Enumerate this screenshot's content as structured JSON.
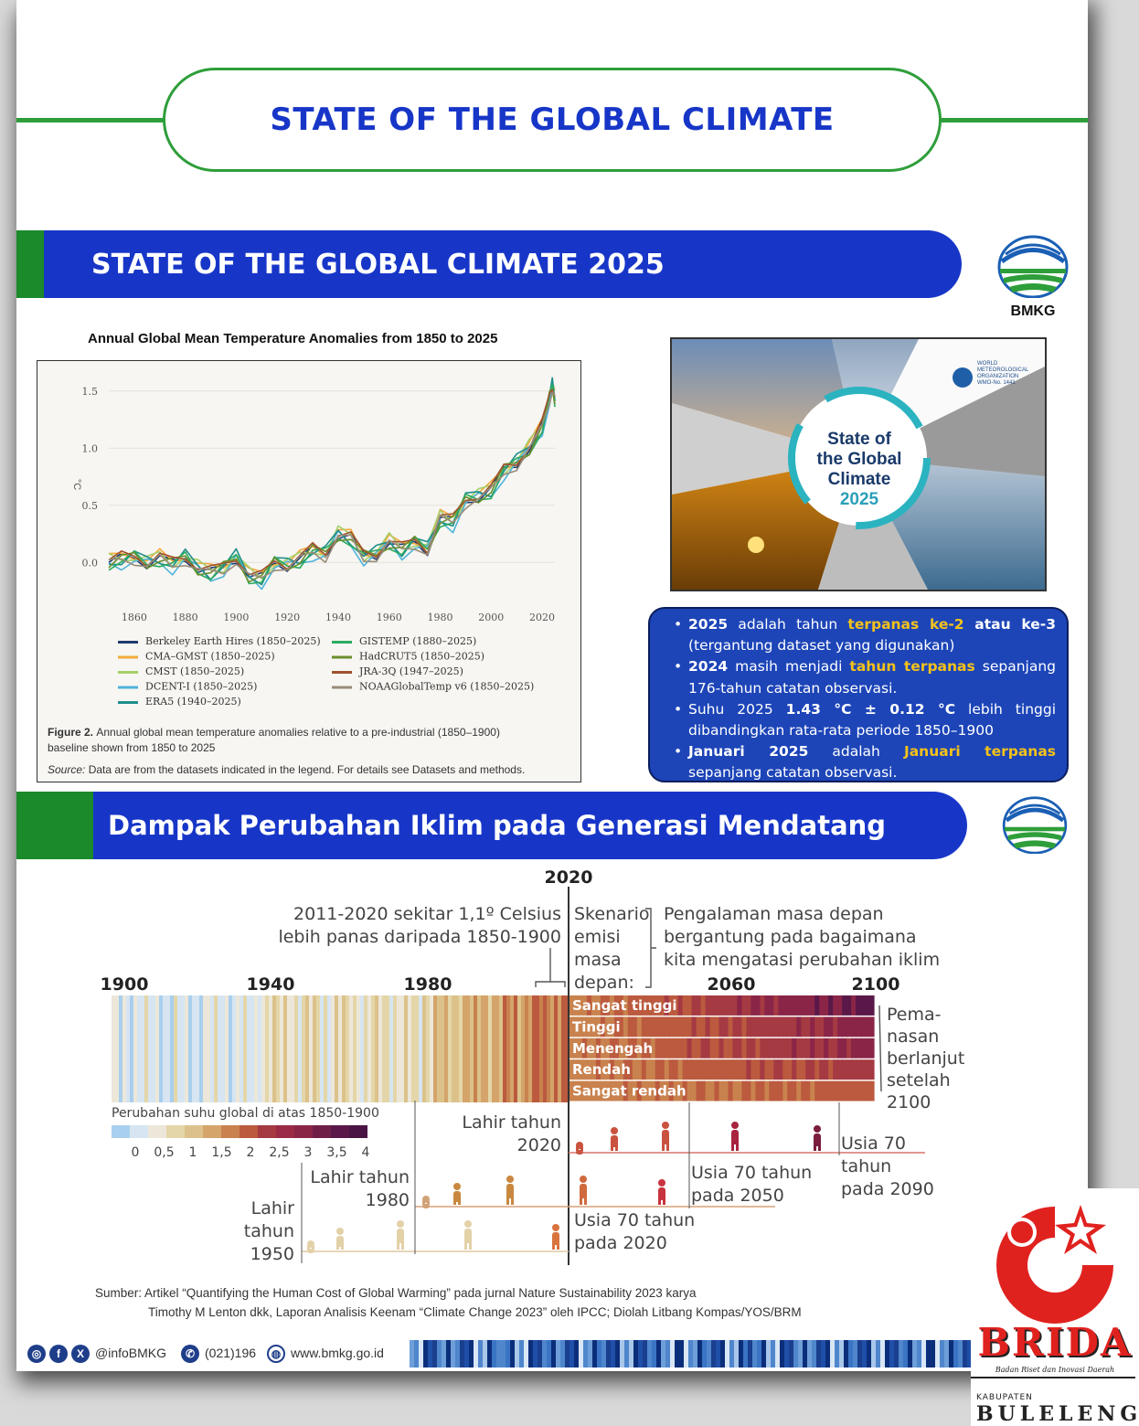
{
  "header": {
    "title": "STATE OF THE GLOBAL CLIMATE"
  },
  "section1": {
    "title": "STATE OF THE GLOBAL CLIMATE 2025"
  },
  "section2": {
    "title": "Dampak Perubahan Iklim pada Generasi Mendatang"
  },
  "logo": {
    "text": "BMKG"
  },
  "chart_data": {
    "type": "line",
    "title": "Annual Global Mean Temperature Anomalies from 1850 to 2025",
    "ylabel": "°C",
    "xlabel": "",
    "xlim": [
      1850,
      2025
    ],
    "ylim": [
      -0.35,
      1.65
    ],
    "x_ticks": [
      "1860",
      "1880",
      "1900",
      "1920",
      "1940",
      "1960",
      "1980",
      "2000",
      "2020"
    ],
    "y_ticks": [
      "1.5",
      "1.0",
      "0.5",
      "0.0"
    ],
    "grid": true,
    "x": [
      1850,
      1855,
      1860,
      1865,
      1870,
      1875,
      1880,
      1885,
      1890,
      1895,
      1900,
      1905,
      1910,
      1915,
      1920,
      1925,
      1930,
      1935,
      1940,
      1945,
      1950,
      1955,
      1960,
      1965,
      1970,
      1975,
      1980,
      1985,
      1990,
      1995,
      2000,
      2005,
      2010,
      2015,
      2020,
      2023,
      2024,
      2025
    ],
    "reference": [
      0.0,
      0.02,
      0.05,
      0.0,
      0.03,
      -0.02,
      0.05,
      -0.05,
      -0.1,
      -0.05,
      0.05,
      -0.12,
      -0.15,
      0.0,
      -0.02,
      0.02,
      0.1,
      0.08,
      0.25,
      0.2,
      0.05,
      0.08,
      0.18,
      0.1,
      0.18,
      0.12,
      0.38,
      0.35,
      0.55,
      0.58,
      0.62,
      0.8,
      0.88,
      1.0,
      1.18,
      1.45,
      1.55,
      1.43
    ],
    "series": [
      {
        "name": "Berkeley Earth Hires (1850–2025)",
        "color": "#1f3a6e",
        "offset": 0.0
      },
      {
        "name": "CMA–GMST (1850–2025)",
        "color": "#f2a93b",
        "offset": 0.03
      },
      {
        "name": "CMST (1850–2025)",
        "color": "#a7cf6a",
        "offset": 0.02
      },
      {
        "name": "DCENT-I (1850–2025)",
        "color": "#4fb3d9",
        "offset": -0.03
      },
      {
        "name": "ERA5 (1940–2025)",
        "color": "#1e8e8a",
        "offset": 0.01
      },
      {
        "name": "GISTEMP (1880–2025)",
        "color": "#2bab5f",
        "offset": -0.01
      },
      {
        "name": "HadCRUT5 (1850–2025)",
        "color": "#6a8e2e",
        "offset": 0.0
      },
      {
        "name": "JRA-3Q (1947–2025)",
        "color": "#a0522d",
        "offset": 0.02
      },
      {
        "name": "NOAAGlobalTemp v6 (1850–2025)",
        "color": "#9a8c7a",
        "offset": -0.02
      }
    ],
    "caption_figure": "Figure 2.",
    "caption_line1": "Annual global mean temperature anomalies relative to a pre-industrial (1850–1900)",
    "caption_line2": "baseline shown from 1850 to 2025",
    "caption_source_label": "Source:",
    "caption_source": "Data are from the datasets indicated in the legend. For details see Datasets and methods."
  },
  "cover": {
    "title_line1": "State of",
    "title_line2": "the Global",
    "title_line3": "Climate",
    "year": "2025",
    "org_line1": "WORLD",
    "org_line2": "METEOROLOGICAL",
    "org_line3": "ORGANIZATION",
    "org_doc": "WMO-No. 1441"
  },
  "info": {
    "b1_a": "2025",
    "b1_b": " adalah tahun ",
    "b1_c": "terpanas ke-2",
    "b1_d": " atau ke-3",
    "b1_e": " (tergantung dataset yang digunakan)",
    "b2_a": "2024",
    "b2_b": " masih menjadi ",
    "b2_c": "tahun terpanas",
    "b2_d": " sepanjang 176-tahun catatan observasi.",
    "b3_a": "Suhu 2025 ",
    "b3_b": "1.43 °C ± 0.12 °C",
    "b3_c": " lebih tinggi dibandingkan rata-rata periode 1850–1900",
    "b4_a": "Januari 2025",
    "b4_b": " adalah ",
    "b4_c": "Januari terpanas",
    "b4_d": " sepanjang catatan observasi."
  },
  "stripes": {
    "year_2020": "2020",
    "years": [
      "1900",
      "1940",
      "1980",
      "2060",
      "2100"
    ],
    "note_2011": "2011-2020 sekitar 1,1º Celsius",
    "note_2011b": "lebih panas daripada 1850-1900",
    "skenario": [
      "Skenario",
      "emisi",
      "masa",
      "depan:"
    ],
    "pengalaman": [
      "Pengalaman masa depan",
      "bergantung pada bagaimana",
      "kita mengatasi perubahan iklim"
    ],
    "scenarios": [
      "Sangat tinggi",
      "Tinggi",
      "Menengah",
      "Rendah",
      "Sangat rendah"
    ],
    "pemanasan": [
      "Pema-",
      "nasan",
      "berlanjut",
      "setelah",
      "2100"
    ],
    "scale_title": "Perubahan suhu global di atas 1850-1900",
    "scale_ticks": [
      "0",
      "0,5",
      "1",
      "1,5",
      "2",
      "2,5",
      "3",
      "3,5",
      "4"
    ],
    "lahir2020": [
      "Lahir  tahun",
      "2020"
    ],
    "lahir1980": [
      "Lahir tahun",
      "1980"
    ],
    "lahir1950": [
      "Lahir",
      "tahun",
      "1950"
    ],
    "usia2090": [
      "Usia 70",
      "tahun",
      "pada 2090"
    ],
    "usia2050": [
      "Usia 70 tahun",
      "pada 2050"
    ],
    "usia2020": [
      "Usia 70 tahun",
      "pada 2020"
    ],
    "source_line1": "Sumber: Artikel “Quantifying the Human Cost of Global Warming” pada jurnal Nature Sustainability 2023 karya",
    "source_line2": "Timothy M Lenton dkk, Laporan Analisis Keenam “Climate Change 2023” oleh IPCC; Diolah Litbang Kompas/YOS/BRM"
  },
  "footer": {
    "handle": "@infoBMKG",
    "phone": "(021)196",
    "website": "www.bmkg.go.id"
  },
  "brida": {
    "name": "BRIDA",
    "tagline": "Badan Riset dan Inovasi Daerah",
    "kab": "KABUPATEN",
    "place": "BULELENG"
  }
}
